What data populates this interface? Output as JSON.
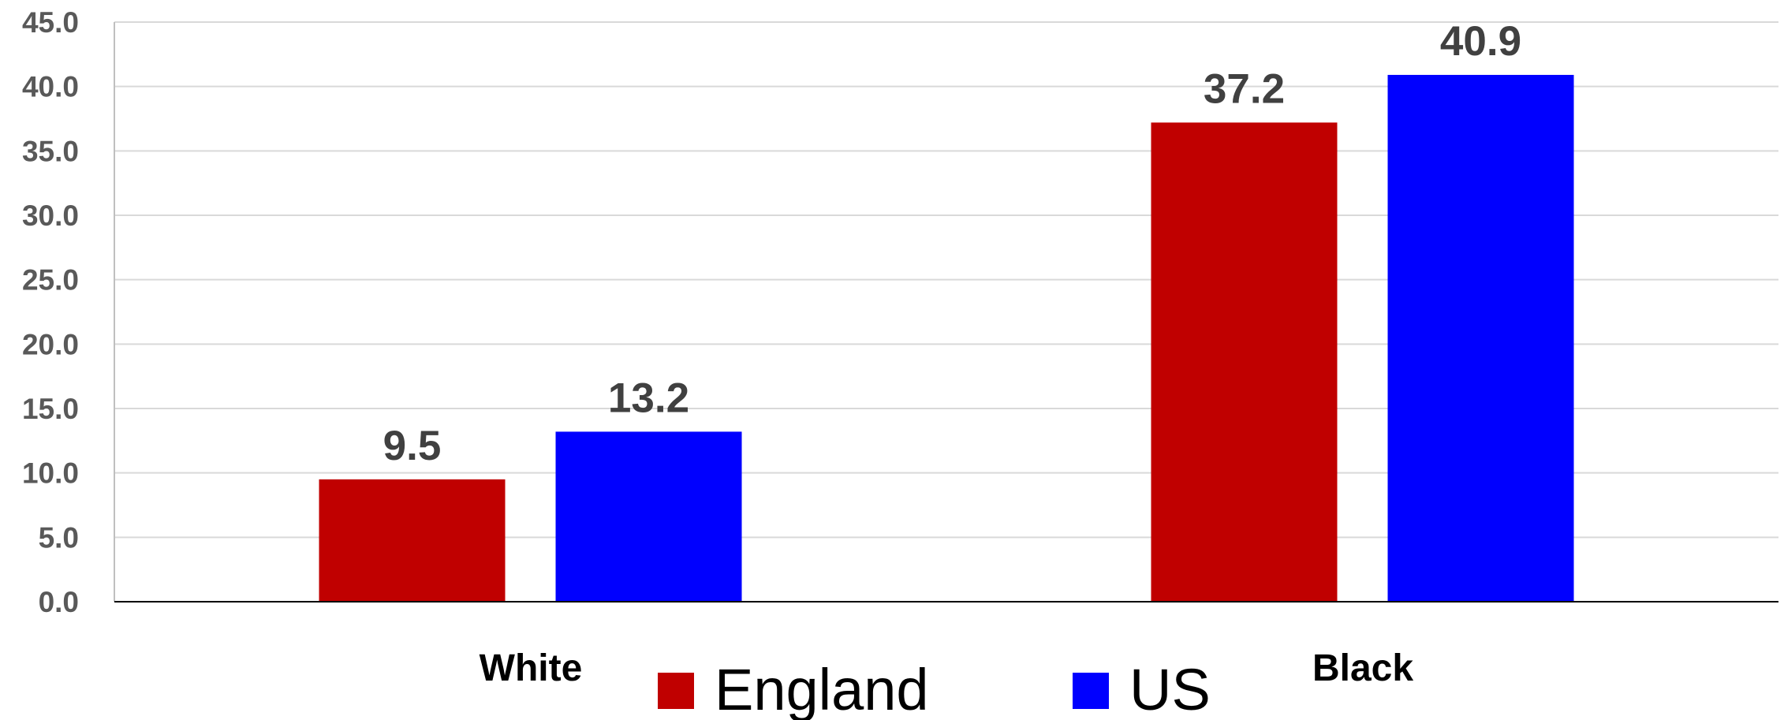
{
  "chart_data": {
    "type": "bar",
    "title": "",
    "xlabel": "",
    "ylabel": "",
    "categories": [
      "White",
      "Black"
    ],
    "series": [
      {
        "name": "England",
        "values": [
          9.5,
          37.2
        ],
        "color": "#C00000"
      },
      {
        "name": "US",
        "values": [
          13.2,
          40.9
        ],
        "color": "#0000FF"
      }
    ],
    "ylim": [
      0,
      45
    ],
    "yticks": [
      0,
      5,
      10,
      15,
      20,
      25,
      30,
      35,
      40,
      45
    ],
    "ytick_labels": [
      "0.0",
      "5.0",
      "10.0",
      "15.0",
      "20.0",
      "25.0",
      "30.0",
      "35.0",
      "40.0",
      "45.0"
    ],
    "grid": true,
    "data_labels": true,
    "legend_position": "bottom"
  }
}
